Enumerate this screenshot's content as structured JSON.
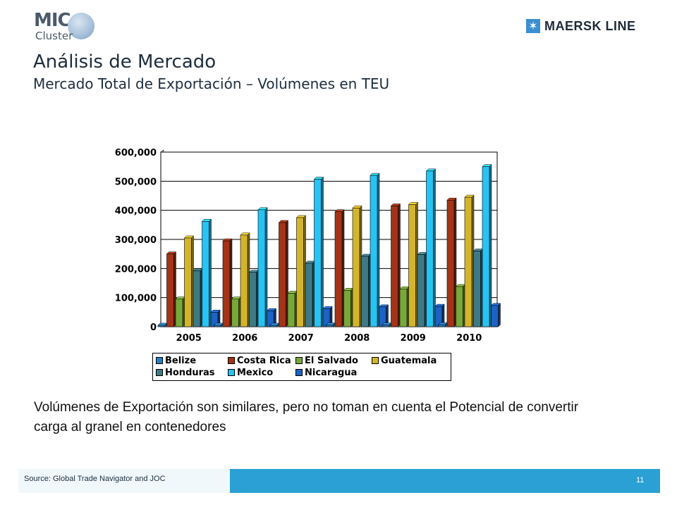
{
  "header": {
    "logo_left_main": "MIC",
    "logo_left_sub": "Cluster",
    "logo_right": "MAERSK LINE",
    "title": "Análisis de Mercado",
    "subtitle": "Mercado Total de Exportación – Volúmenes en TEU"
  },
  "note": "Volúmenes de Exportación son similares, pero no toman en cuenta el Potencial de convertir carga al granel en contenedores",
  "footer": {
    "source": "Source: Global Trade Navigator and JOC",
    "page": "11"
  },
  "chart_data": {
    "type": "bar",
    "title": "",
    "xlabel": "",
    "ylabel": "",
    "ylim": [
      0,
      600000
    ],
    "yticks": [
      0,
      100000,
      200000,
      300000,
      400000,
      500000,
      600000
    ],
    "ytick_labels": [
      "0",
      "100,000",
      "200,000",
      "300,000",
      "400,000",
      "500,000",
      "600,000"
    ],
    "categories": [
      "2005",
      "2006",
      "2007",
      "2008",
      "2009",
      "2010"
    ],
    "grid": true,
    "legend_position": "bottom",
    "series": [
      {
        "name": "Belize",
        "color": "#2a7fbf",
        "values": [
          5000,
          5000,
          5000,
          6000,
          6000,
          7000
        ]
      },
      {
        "name": "Costa Rica",
        "color": "#a33418",
        "values": [
          250000,
          295000,
          358000,
          395000,
          415000,
          435000
        ]
      },
      {
        "name": "El Salvado",
        "color": "#79a83a",
        "values": [
          95000,
          95000,
          115000,
          125000,
          130000,
          138000
        ]
      },
      {
        "name": "Guatemala",
        "color": "#d4b52a",
        "values": [
          305000,
          315000,
          375000,
          408000,
          420000,
          445000
        ]
      },
      {
        "name": "Honduras",
        "color": "#3e7a86",
        "values": [
          192000,
          187000,
          218000,
          242000,
          248000,
          260000
        ]
      },
      {
        "name": "Mexico",
        "color": "#27c3f3",
        "values": [
          362000,
          402000,
          507000,
          520000,
          535000,
          550000
        ]
      },
      {
        "name": "Nicaragua",
        "color": "#1d62c4",
        "values": [
          50000,
          55000,
          62000,
          68000,
          70000,
          73000
        ]
      }
    ]
  }
}
